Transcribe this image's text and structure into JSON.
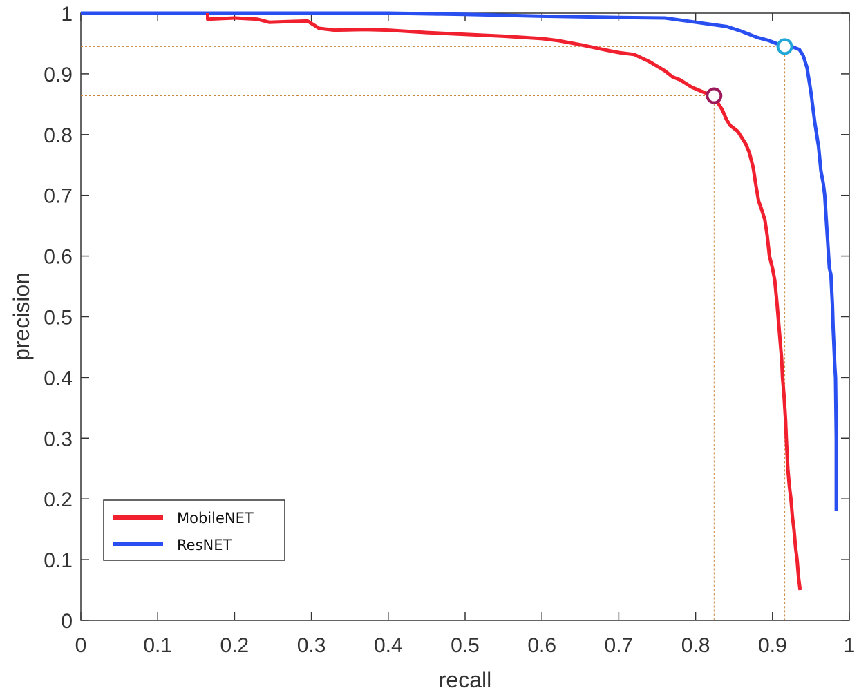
{
  "chart_data": {
    "type": "line",
    "title": "",
    "xlabel": "recall",
    "ylabel": "precision",
    "xlim": [
      0,
      1
    ],
    "ylim": [
      0,
      1
    ],
    "x_ticks": [
      "0",
      "0.1",
      "0.2",
      "0.3",
      "0.4",
      "0.5",
      "0.6",
      "0.7",
      "0.8",
      "0.9",
      "1"
    ],
    "y_ticks": [
      "0",
      "0.1",
      "0.2",
      "0.3",
      "0.4",
      "0.5",
      "0.6",
      "0.7",
      "0.8",
      "0.9",
      "1"
    ],
    "grid": false,
    "legend_position": "bottom-left",
    "series": [
      {
        "name": "MobileNET",
        "color": "#f0202e",
        "x": [
          0.165,
          0.165,
          0.2,
          0.23,
          0.245,
          0.27,
          0.295,
          0.31,
          0.33,
          0.37,
          0.4,
          0.45,
          0.5,
          0.55,
          0.6,
          0.62,
          0.65,
          0.68,
          0.7,
          0.72,
          0.74,
          0.76,
          0.77,
          0.78,
          0.795,
          0.81,
          0.823,
          0.835,
          0.84,
          0.845,
          0.855,
          0.86,
          0.865,
          0.87,
          0.875,
          0.878,
          0.882,
          0.885,
          0.89,
          0.893,
          0.896,
          0.9,
          0.903,
          0.906,
          0.908,
          0.91,
          0.912,
          0.913,
          0.915,
          0.917,
          0.918,
          0.92,
          0.922,
          0.924,
          0.926,
          0.928,
          0.93,
          0.932,
          0.934,
          0.936
        ],
        "y": [
          1.0,
          0.99,
          0.992,
          0.99,
          0.985,
          0.986,
          0.987,
          0.975,
          0.972,
          0.973,
          0.972,
          0.968,
          0.965,
          0.962,
          0.958,
          0.955,
          0.948,
          0.94,
          0.935,
          0.932,
          0.92,
          0.905,
          0.895,
          0.89,
          0.878,
          0.87,
          0.864,
          0.84,
          0.825,
          0.815,
          0.805,
          0.795,
          0.785,
          0.77,
          0.745,
          0.72,
          0.69,
          0.68,
          0.66,
          0.635,
          0.6,
          0.58,
          0.56,
          0.52,
          0.49,
          0.46,
          0.43,
          0.4,
          0.37,
          0.33,
          0.3,
          0.25,
          0.22,
          0.2,
          0.17,
          0.15,
          0.12,
          0.1,
          0.07,
          0.05
        ]
      },
      {
        "name": "ResNET",
        "color": "#2a4ff0",
        "x": [
          0.0,
          0.2,
          0.4,
          0.5,
          0.6,
          0.7,
          0.76,
          0.8,
          0.84,
          0.86,
          0.88,
          0.895,
          0.905,
          0.915,
          0.925,
          0.935,
          0.94,
          0.945,
          0.95,
          0.955,
          0.96,
          0.963,
          0.966,
          0.968,
          0.97,
          0.972,
          0.974,
          0.976,
          0.978,
          0.979,
          0.98,
          0.981,
          0.982,
          0.983,
          0.983
        ],
        "y": [
          1.0,
          1.0,
          1.0,
          0.998,
          0.995,
          0.993,
          0.992,
          0.985,
          0.978,
          0.97,
          0.96,
          0.955,
          0.95,
          0.947,
          0.945,
          0.94,
          0.93,
          0.91,
          0.87,
          0.82,
          0.78,
          0.74,
          0.72,
          0.7,
          0.66,
          0.62,
          0.58,
          0.57,
          0.52,
          0.48,
          0.45,
          0.42,
          0.4,
          0.3,
          0.18
        ]
      }
    ],
    "markers": [
      {
        "series": "MobileNET",
        "x": 0.824,
        "y": 0.864,
        "color": "#9c1a5c"
      },
      {
        "series": "ResNET",
        "x": 0.916,
        "y": 0.945,
        "color": "#22a6d8"
      }
    ]
  }
}
